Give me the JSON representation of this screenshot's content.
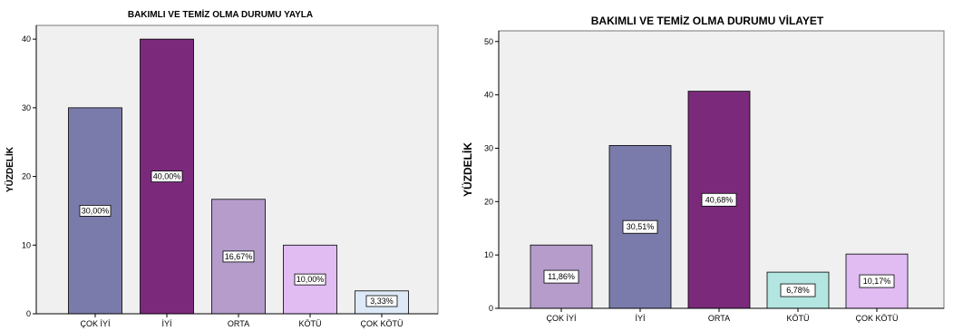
{
  "chart_data": [
    {
      "type": "bar",
      "title": "BAKIMLI VE TEMİZ OLMA DURUMU YAYLA",
      "ylabel": "YÜZDELİK",
      "xlabel": "",
      "categories": [
        "ÇOK İYİ",
        "İYİ",
        "ORTA",
        "KÖTÜ",
        "ÇOK KÖTÜ"
      ],
      "values": [
        30.0,
        40.0,
        16.67,
        10.0,
        3.33
      ],
      "data_labels": [
        "30,00%",
        "40,00%",
        "16,67%",
        "10,00%",
        "3,33%"
      ],
      "colors": [
        "#7b7bab",
        "#7b2a7b",
        "#b59ccb",
        "#e0bcf2",
        "#dde9f6"
      ],
      "ylim": [
        0,
        42
      ],
      "yticks": [
        "0",
        "10",
        "20",
        "30",
        "40"
      ],
      "grid": false
    },
    {
      "type": "bar",
      "title": "BAKIMLI VE TEMİZ OLMA DURUMU VİLAYET",
      "ylabel": "YÜZDELİK",
      "xlabel": "",
      "categories": [
        "ÇOK İYİ",
        "İYİ",
        "ORTA",
        "KÖTÜ",
        "ÇOK KÖTÜ"
      ],
      "values": [
        11.86,
        30.51,
        40.68,
        6.78,
        10.17
      ],
      "data_labels": [
        "11,86%",
        "30,51%",
        "40,68%",
        "6,78%",
        "10,17%"
      ],
      "colors": [
        "#b59ccb",
        "#7b7bab",
        "#7b2a7b",
        "#b3e6e0",
        "#e0bcf2"
      ],
      "ylim": [
        0,
        52
      ],
      "yticks": [
        "0",
        "10",
        "20",
        "30",
        "40",
        "50"
      ],
      "grid": false
    }
  ]
}
